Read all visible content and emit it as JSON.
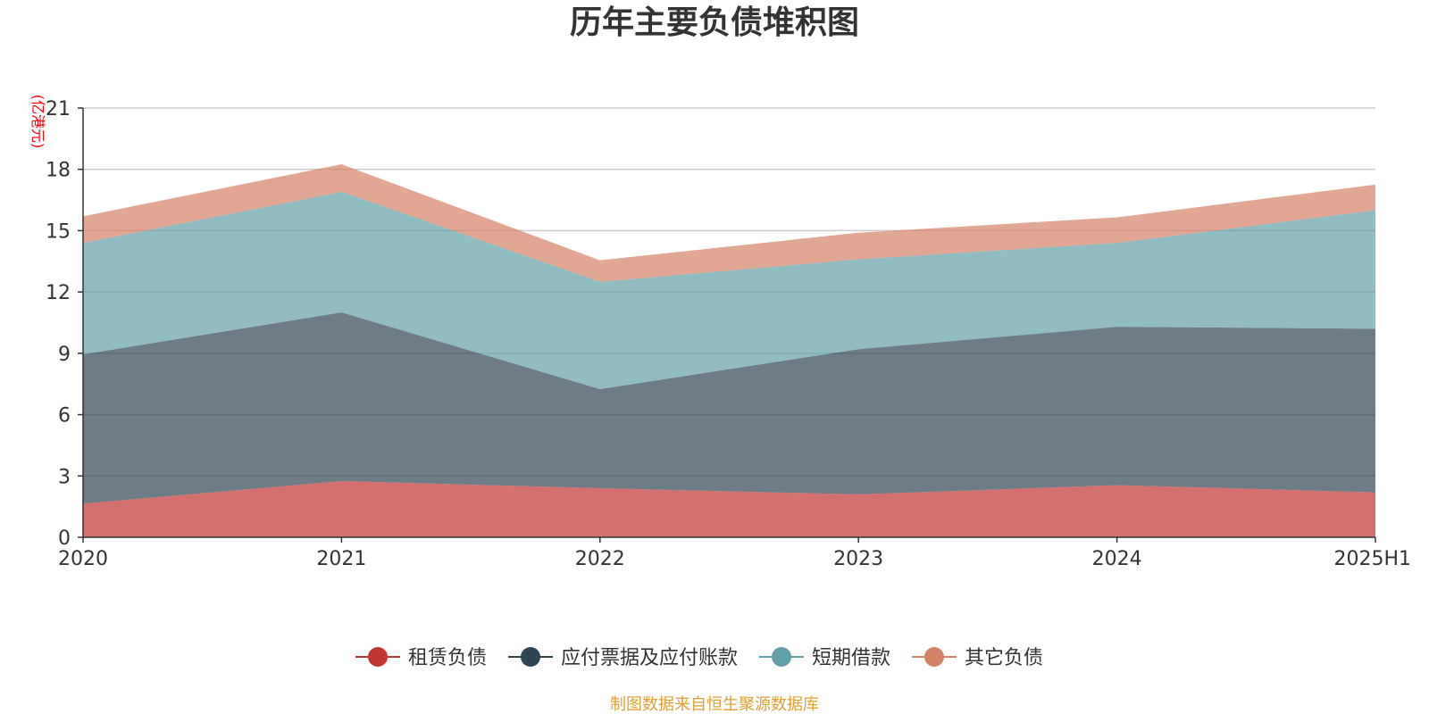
{
  "chart_data": {
    "type": "area",
    "stacked": true,
    "title": "历年主要负债堆积图",
    "unit_label": "(亿港元)",
    "categories": [
      "2020",
      "2021",
      "2022",
      "2023",
      "2024",
      "2025H1"
    ],
    "ylim": [
      0,
      21
    ],
    "yticks": [
      "0",
      "3",
      "6",
      "9",
      "12",
      "15",
      "18",
      "21"
    ],
    "grid": true,
    "legend_position": "bottom",
    "series": [
      {
        "name": "租赁负债",
        "color": "#c23531",
        "values": [
          1.65,
          2.75,
          2.4,
          2.1,
          2.55,
          2.2
        ]
      },
      {
        "name": "应付票据及应付账款",
        "color": "#2f4554",
        "values": [
          7.3,
          8.25,
          4.85,
          7.1,
          7.75,
          8.0
        ]
      },
      {
        "name": "短期借款",
        "color": "#61a0a8",
        "values": [
          5.45,
          5.9,
          5.25,
          4.4,
          4.1,
          5.8
        ]
      },
      {
        "name": "其它负债",
        "color": "#d48265",
        "values": [
          1.3,
          1.35,
          1.05,
          1.3,
          1.25,
          1.25
        ]
      }
    ],
    "unit_color": "#ff0000",
    "source_note": "制图数据来自恒生聚源数据库",
    "source_color": "#e0a030"
  }
}
